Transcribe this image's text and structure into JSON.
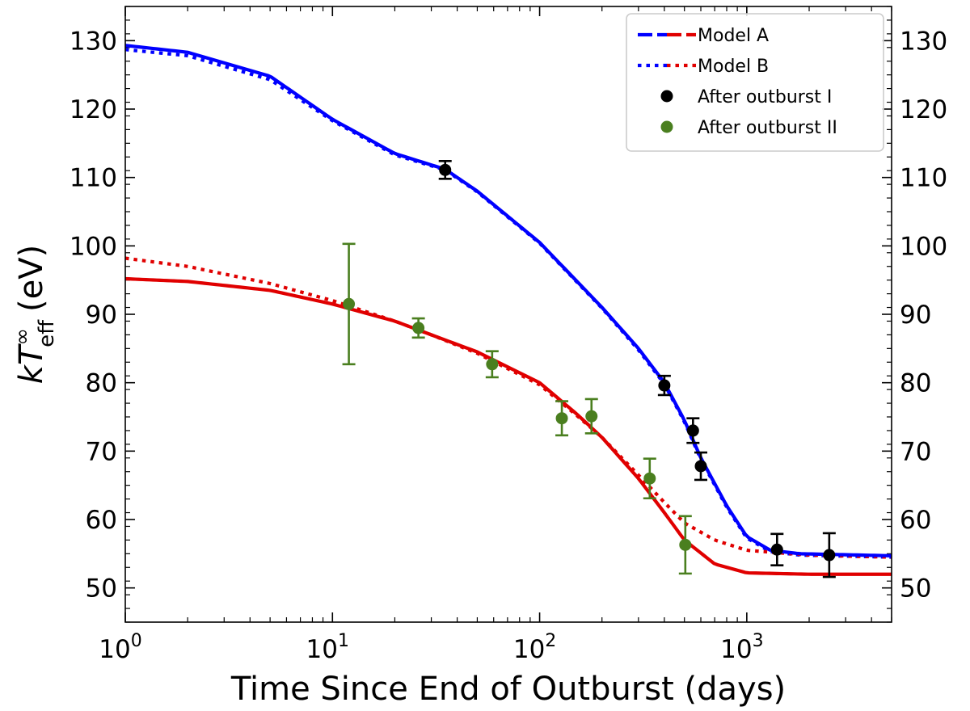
{
  "chart_data": {
    "type": "line",
    "xlabel": "Time Since End of Outburst (days)",
    "ylabel_main": "kT",
    "ylabel_sup": "∞",
    "ylabel_sub": "eff",
    "ylabel_unit": "(eV)",
    "x_scale": "log",
    "xlim": [
      1,
      5000
    ],
    "ylim": [
      45,
      135
    ],
    "x_ticks": [
      {
        "value": 1,
        "base": "10",
        "exp": "0"
      },
      {
        "value": 10,
        "base": "10",
        "exp": "1"
      },
      {
        "value": 100,
        "base": "10",
        "exp": "2"
      },
      {
        "value": 1000,
        "base": "10",
        "exp": "3"
      }
    ],
    "y_ticks": [
      50,
      60,
      70,
      80,
      90,
      100,
      110,
      120,
      130
    ],
    "y_tick_labels": [
      "50",
      "60",
      "70",
      "80",
      "90",
      "100",
      "110",
      "120",
      "130"
    ],
    "legend": {
      "placement": "top-right",
      "entries": [
        {
          "label": "Model A",
          "style": "dashed",
          "colors": [
            "#0000ff",
            "#e00000"
          ]
        },
        {
          "label": "Model B",
          "style": "dotted",
          "colors": [
            "#0000ff",
            "#e00000"
          ]
        },
        {
          "label": "After outburst  I",
          "style": "marker",
          "colors": [
            "#000000"
          ]
        },
        {
          "label": "After outburst  II",
          "style": "marker",
          "colors": [
            "#4a7f1f"
          ]
        }
      ]
    },
    "series": [
      {
        "name": "Model A (outburst I)",
        "color": "#0000ff",
        "style": "solid",
        "points": [
          [
            1,
            129.3
          ],
          [
            2,
            128.3
          ],
          [
            5,
            124.8
          ],
          [
            10,
            118.5
          ],
          [
            20,
            113.5
          ],
          [
            35,
            111.2
          ],
          [
            50,
            108
          ],
          [
            100,
            100.5
          ],
          [
            200,
            91
          ],
          [
            300,
            85
          ],
          [
            400,
            80
          ],
          [
            500,
            74.5
          ],
          [
            600,
            69
          ],
          [
            800,
            62
          ],
          [
            1000,
            57.5
          ],
          [
            1300,
            55.5
          ],
          [
            1800,
            55
          ],
          [
            5000,
            54.7
          ]
        ]
      },
      {
        "name": "Model B (outburst I)",
        "color": "#0000ff",
        "style": "dotted",
        "points": [
          [
            1,
            128.7
          ],
          [
            2,
            127.8
          ],
          [
            5,
            124.3
          ],
          [
            10,
            118.3
          ],
          [
            20,
            113.3
          ],
          [
            35,
            111.1
          ],
          [
            50,
            107.9
          ],
          [
            100,
            100.4
          ],
          [
            200,
            90.9
          ],
          [
            300,
            84.8
          ],
          [
            400,
            79.8
          ],
          [
            500,
            74.3
          ],
          [
            600,
            68.8
          ],
          [
            800,
            61.8
          ],
          [
            1000,
            57.3
          ],
          [
            1300,
            55.3
          ],
          [
            1800,
            54.8
          ],
          [
            5000,
            54.5
          ]
        ]
      },
      {
        "name": "Model A (outburst II)",
        "color": "#e00000",
        "style": "solid",
        "points": [
          [
            1,
            95.2
          ],
          [
            2,
            94.8
          ],
          [
            5,
            93.5
          ],
          [
            10,
            91.5
          ],
          [
            20,
            89
          ],
          [
            30,
            87
          ],
          [
            50,
            84.5
          ],
          [
            100,
            80
          ],
          [
            150,
            75.5
          ],
          [
            200,
            72
          ],
          [
            300,
            66
          ],
          [
            400,
            61
          ],
          [
            500,
            57
          ],
          [
            700,
            53.5
          ],
          [
            1000,
            52.2
          ],
          [
            2000,
            52
          ],
          [
            5000,
            52
          ]
        ]
      },
      {
        "name": "Model B (outburst II)",
        "color": "#e00000",
        "style": "dotted",
        "points": [
          [
            1,
            98.2
          ],
          [
            2,
            97
          ],
          [
            5,
            94.5
          ],
          [
            10,
            92
          ],
          [
            20,
            89
          ],
          [
            30,
            87
          ],
          [
            50,
            84.3
          ],
          [
            100,
            79.7
          ],
          [
            150,
            75.3
          ],
          [
            200,
            72
          ],
          [
            300,
            66.5
          ],
          [
            400,
            62.5
          ],
          [
            500,
            59.5
          ],
          [
            700,
            57
          ],
          [
            1000,
            55.5
          ],
          [
            2000,
            54.8
          ],
          [
            5000,
            54.5
          ]
        ]
      }
    ],
    "data_points": [
      {
        "group": "After outburst  I",
        "color": "#000000",
        "points": [
          {
            "x": 35,
            "y": 111.1,
            "err": 1.3
          },
          {
            "x": 400,
            "y": 79.6,
            "err": 1.4
          },
          {
            "x": 550,
            "y": 73.0,
            "err": 1.8
          },
          {
            "x": 600,
            "y": 67.8,
            "err": 2.0
          },
          {
            "x": 1400,
            "y": 55.6,
            "err": 2.3
          },
          {
            "x": 2500,
            "y": 54.8,
            "err": 3.2
          }
        ]
      },
      {
        "group": "After outburst  II",
        "color": "#4a7f1f",
        "points": [
          {
            "x": 12,
            "y": 91.5,
            "err": 8.8
          },
          {
            "x": 26,
            "y": 88.0,
            "err": 1.4
          },
          {
            "x": 59,
            "y": 82.7,
            "err": 1.9
          },
          {
            "x": 128,
            "y": 74.8,
            "err": 2.5
          },
          {
            "x": 178,
            "y": 75.1,
            "err": 2.5
          },
          {
            "x": 340,
            "y": 66.0,
            "err": 2.9
          },
          {
            "x": 505,
            "y": 56.3,
            "err": 4.2
          }
        ]
      }
    ]
  }
}
